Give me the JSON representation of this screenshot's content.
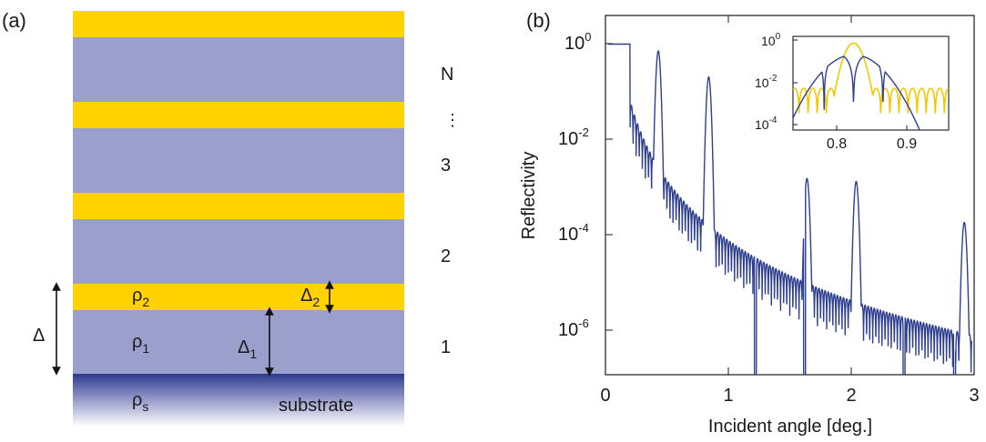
{
  "colors": {
    "gold": "#FFD200",
    "lavender": "#9B9FCB",
    "substrate_top": "#2C3A8C",
    "curve_blue": "#2E3F8F",
    "curve_gold": "#F2C900"
  },
  "panel_a": {
    "label": "(a)",
    "layer_numbers": [
      "N",
      "⋮",
      "3",
      "2",
      "1"
    ],
    "rho2": "ρ",
    "rho2_sub": "2",
    "rho1": "ρ",
    "rho1_sub": "1",
    "rhos": "ρ",
    "rhos_sub": "s",
    "delta": "Δ",
    "delta2": "Δ",
    "delta2_sub": "2",
    "delta1": "Δ",
    "delta1_sub": "1",
    "substrate": "substrate"
  },
  "panel_b": {
    "label": "(b)",
    "xlabel": "Incident angle [deg.]",
    "ylabel": "Reflectivity",
    "x_ticks": [
      "0",
      "1",
      "2",
      "3"
    ],
    "y_tick_base": "10",
    "y_tick_exps": [
      "0",
      "-2",
      "-4",
      "-6"
    ],
    "inset_x_ticks": [
      "0.8",
      "0.9"
    ],
    "inset_y_exps": [
      "0",
      "-2",
      "-4"
    ]
  },
  "chart_data": [
    {
      "type": "line",
      "scale": "log",
      "xlim": [
        0,
        3
      ],
      "ylim": [
        1e-07,
        3
      ],
      "bragg_peaks": [
        {
          "x": 0.43,
          "y": 0.7
        },
        {
          "x": 0.84,
          "y": 0.2
        },
        {
          "x": 1.64,
          "y": 0.0015
        },
        {
          "x": 2.04,
          "y": 0.0013
        },
        {
          "x": 2.92,
          "y": 0.00018
        }
      ],
      "critical_angle": 0.2
    },
    {
      "type": "line",
      "scale": "log",
      "xlim": [
        0.77,
        0.95
      ],
      "ylim": [
        0.0001,
        1
      ],
      "peak_x": 0.84
    }
  ]
}
